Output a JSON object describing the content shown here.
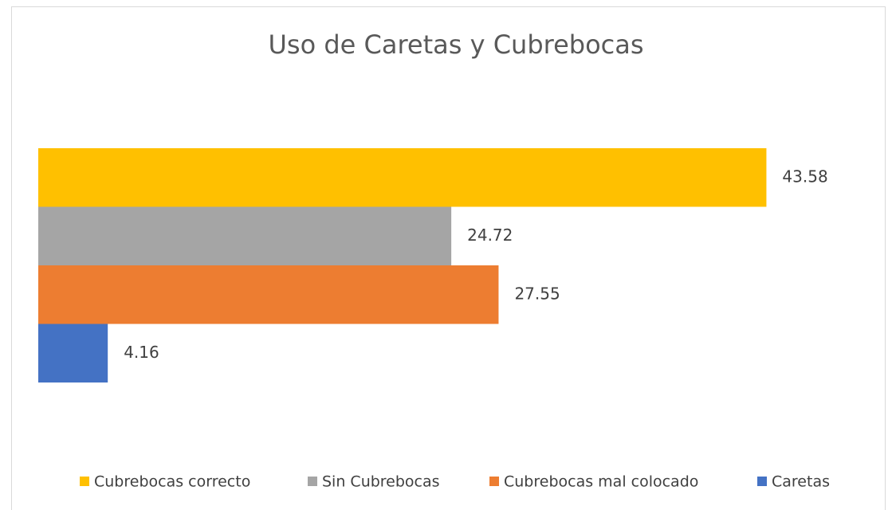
{
  "chart_data": {
    "type": "bar",
    "orientation": "horizontal",
    "title": "Uso de Caretas y Cubrebocas",
    "categories": [
      null
    ],
    "series": [
      {
        "name": "Cubrebocas correcto",
        "color": "#ffc000",
        "values": [
          43.58
        ]
      },
      {
        "name": "Sin Cubrebocas",
        "color": "#a5a5a5",
        "values": [
          24.72
        ]
      },
      {
        "name": "Cubrebocas mal colocado",
        "color": "#ed7d31",
        "values": [
          27.55
        ]
      },
      {
        "name": "Caretas",
        "color": "#4472c4",
        "values": [
          4.16
        ]
      }
    ],
    "xlim": [
      0,
      50
    ],
    "legend": "bottom"
  }
}
